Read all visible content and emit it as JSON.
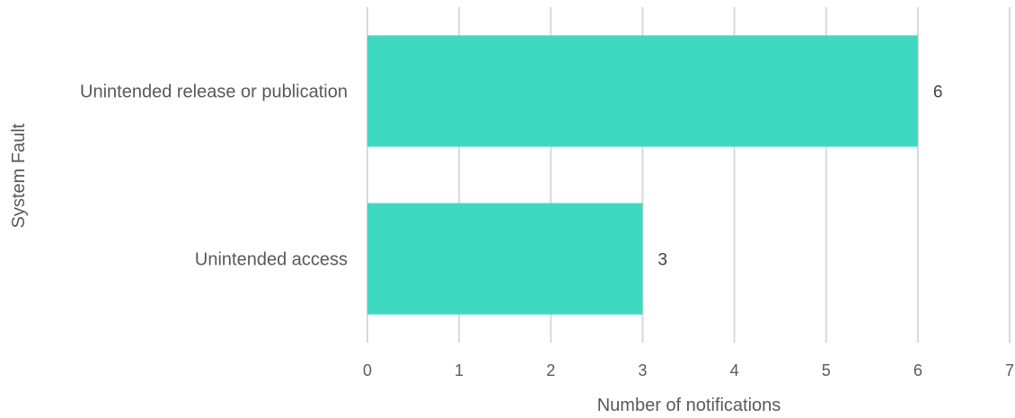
{
  "chart_data": {
    "type": "bar",
    "orientation": "horizontal",
    "categories": [
      "Unintended release or publication",
      "Unintended access"
    ],
    "values": [
      6,
      3
    ],
    "xlabel": "Number of notifications",
    "ylabel": "System Fault",
    "xlim": [
      0,
      7
    ],
    "xticks": [
      0,
      1,
      2,
      3,
      4,
      5,
      6,
      7
    ],
    "grid": "vertical",
    "legend": "none",
    "data_labels": [
      "6",
      "3"
    ],
    "colors": {
      "bar": "#3fd9c1",
      "grid": "#d9d9d9",
      "text": "#595959"
    }
  }
}
